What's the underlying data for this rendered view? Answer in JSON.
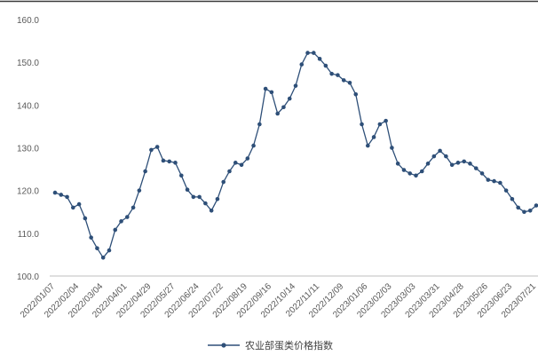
{
  "chart_data": {
    "type": "line",
    "title": "",
    "xlabel": "",
    "ylabel": "",
    "ylim": [
      100.0,
      160.0
    ],
    "y_ticks": [
      "100.0",
      "110.0",
      "120.0",
      "130.0",
      "140.0",
      "150.0",
      "160.0"
    ],
    "x_tick_labels": [
      "2022/01/07",
      "2022/02/04",
      "2022/03/04",
      "2022/04/01",
      "2022/04/29",
      "2022/05/27",
      "2022/06/24",
      "2022/07/22",
      "2022/08/19",
      "2022/09/16",
      "2022/10/14",
      "2022/11/11",
      "2022/12/09",
      "2023/01/06",
      "2023/02/03",
      "2023/03/03",
      "2023/03/31",
      "2023/04/28",
      "2023/05/26",
      "2023/06/23",
      "2023/07/21"
    ],
    "grid": false,
    "legend": "bottom",
    "series": [
      {
        "name": "农业部蛋类价格指数",
        "color": "#2e4f78",
        "values": [
          119.5,
          119.0,
          118.5,
          116.0,
          116.8,
          113.5,
          109.0,
          106.5,
          104.3,
          106.0,
          110.8,
          112.8,
          113.8,
          116.0,
          120.0,
          124.5,
          129.5,
          130.2,
          127.0,
          126.8,
          126.5,
          123.5,
          120.2,
          118.5,
          118.5,
          117.0,
          115.3,
          118.0,
          122.0,
          124.5,
          126.5,
          126.0,
          127.5,
          130.5,
          135.5,
          143.8,
          143.0,
          138.0,
          139.5,
          141.5,
          144.5,
          149.5,
          152.2,
          152.2,
          150.8,
          149.2,
          147.3,
          147.0,
          145.8,
          145.2,
          142.5,
          135.5,
          130.5,
          132.5,
          135.5,
          136.3,
          130.0,
          126.3,
          124.8,
          124.0,
          123.5,
          124.5,
          126.3,
          128.0,
          129.3,
          128.0,
          126.0,
          126.5,
          126.8,
          126.3,
          125.2,
          124.0,
          122.5,
          122.2,
          121.8,
          120.0,
          118.0,
          116.0,
          115.0,
          115.3,
          116.5
        ]
      }
    ]
  }
}
